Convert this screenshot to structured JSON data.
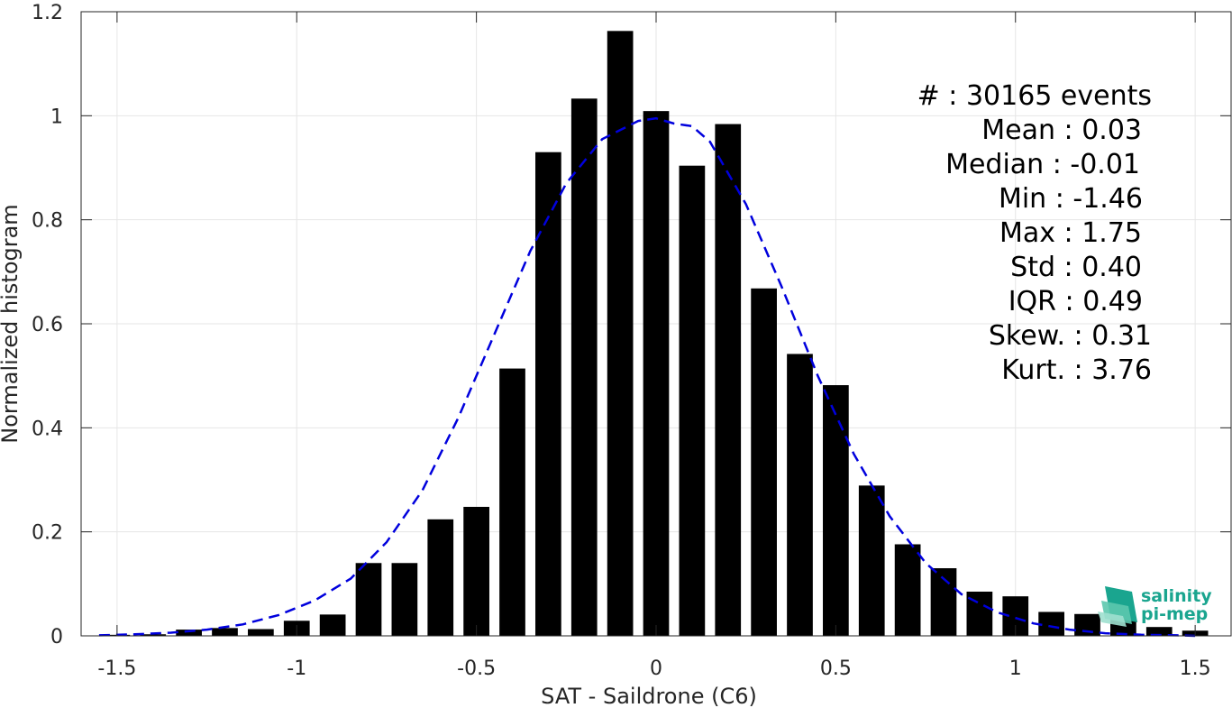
{
  "chart_data": {
    "type": "bar",
    "xlabel": "SAT - Saildrone (C6)",
    "ylabel": "Normalized histogram",
    "xlim": [
      -1.6,
      1.6
    ],
    "ylim": [
      0,
      1.2
    ],
    "xticks": [
      -1.5,
      -1,
      -0.5,
      0,
      0.5,
      1,
      1.5
    ],
    "xtick_labels": [
      "-1.5",
      "-1",
      "-0.5",
      "0",
      "0.5",
      "1",
      "1.5"
    ],
    "yticks": [
      0,
      0.2,
      0.4,
      0.6,
      0.8,
      1,
      1.2
    ],
    "ytick_labels": [
      "0",
      "0.2",
      "0.4",
      "0.6",
      "0.8",
      "1",
      "1.2"
    ],
    "grid": true,
    "bar_color": "#000000",
    "fit_color": "#0000dd",
    "bin_width": 0.1,
    "series": [
      {
        "x": [
          -1.5,
          -1.4,
          -1.3,
          -1.2,
          -1.1,
          -1.0,
          -0.9,
          -0.8,
          -0.7,
          -0.6,
          -0.5,
          -0.4,
          -0.3,
          -0.2,
          -0.1,
          0.0,
          0.1,
          0.2,
          0.3,
          0.4,
          0.5,
          0.6,
          0.7,
          0.8,
          0.9,
          1.0,
          1.1,
          1.2,
          1.3,
          1.4,
          1.5
        ],
        "values": [
          0.002,
          0.003,
          0.012,
          0.015,
          0.013,
          0.029,
          0.041,
          0.14,
          0.14,
          0.224,
          0.248,
          0.514,
          0.93,
          1.033,
          1.163,
          1.009,
          0.904,
          0.984,
          0.668,
          0.542,
          0.482,
          0.289,
          0.176,
          0.13,
          0.085,
          0.076,
          0.046,
          0.042,
          0.036,
          0.017,
          0.01
        ]
      }
    ],
    "fit": {
      "x": [
        -1.55,
        -1.45,
        -1.35,
        -1.25,
        -1.15,
        -1.05,
        -0.95,
        -0.85,
        -0.75,
        -0.65,
        -0.55,
        -0.45,
        -0.35,
        -0.25,
        -0.15,
        -0.05,
        0.0,
        0.05,
        0.1,
        0.15,
        0.25,
        0.35,
        0.45,
        0.55,
        0.65,
        0.75,
        0.85,
        0.95,
        1.05,
        1.15,
        1.25,
        1.35,
        1.45,
        1.5
      ],
      "values": [
        0.001,
        0.003,
        0.006,
        0.012,
        0.022,
        0.04,
        0.068,
        0.11,
        0.18,
        0.28,
        0.42,
        0.58,
        0.74,
        0.87,
        0.955,
        0.99,
        0.995,
        0.985,
        0.98,
        0.95,
        0.83,
        0.67,
        0.5,
        0.35,
        0.23,
        0.14,
        0.08,
        0.045,
        0.024,
        0.012,
        0.005,
        0.002,
        0.001,
        0.0
      ]
    },
    "annotations": [
      "#  : 30165 events",
      "Mean : 0.03",
      "Median : -0.01",
      "Min : -1.46",
      "Max : 1.75",
      "Std : 0.40",
      "IQR : 0.49",
      "Skew. : 0.31",
      "Kurt. : 3.76"
    ]
  },
  "logo": {
    "line1": "salinity",
    "line2": "pi-mep",
    "color": "#1aa58f"
  }
}
